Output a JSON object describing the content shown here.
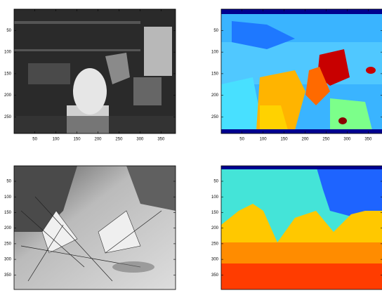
{
  "chart_data": [
    {
      "type": "image",
      "xlim": [
        0.5,
        384.5
      ],
      "ylim": [
        0.5,
        288.5
      ],
      "xticks": [
        50,
        100,
        150,
        200,
        250,
        300,
        350
      ],
      "yticks": [
        50,
        100,
        150,
        200,
        250
      ]
    },
    {
      "type": "image",
      "xlim": [
        0.5,
        384.5
      ],
      "ylim": [
        0.5,
        288.5
      ],
      "xticks": [
        50,
        100,
        150,
        200,
        250,
        300,
        350
      ],
      "yticks": [
        50,
        100,
        150,
        200,
        250
      ]
    },
    {
      "type": "image",
      "xlim": [
        0.5,
        384.5
      ],
      "ylim": [
        0.5,
        396.5
      ],
      "yticks": [
        50,
        100,
        150,
        200,
        250,
        300,
        350
      ]
    },
    {
      "type": "image",
      "xlim": [
        0.5,
        384.5
      ],
      "ylim": [
        0.5,
        396.5
      ],
      "yticks": [
        50,
        100,
        150,
        200,
        250,
        300,
        350
      ]
    }
  ]
}
